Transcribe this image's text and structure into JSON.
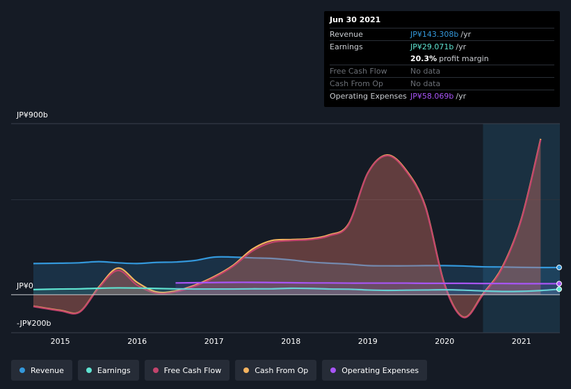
{
  "tooltip": {
    "date": "Jun 30 2021",
    "rows": [
      {
        "label": "Revenue",
        "value": "JP¥143.308b",
        "unit": "/yr",
        "color": "#3498db"
      },
      {
        "label": "Earnings",
        "value": "JP¥29.071b",
        "unit": "/yr",
        "color": "#5fe3d1"
      },
      {
        "label": "",
        "value": "20.3%",
        "unit": "profit margin",
        "color": "#ffffff"
      },
      {
        "label": "Free Cash Flow",
        "value": "No data",
        "unit": "",
        "color": "#6b6f76"
      },
      {
        "label": "Cash From Op",
        "value": "No data",
        "unit": "",
        "color": "#6b6f76"
      },
      {
        "label": "Operating Expenses",
        "value": "JP¥58.069b",
        "unit": "/yr",
        "color": "#a855f7"
      }
    ]
  },
  "chart_data": {
    "type": "area",
    "currency_prefix": "JP¥",
    "y_tick_labels": [
      "JP¥900b",
      "JP¥0",
      "-JP¥200b"
    ],
    "ylim": [
      -200,
      900
    ],
    "x_tick_labels": [
      "2015",
      "2016",
      "2017",
      "2018",
      "2019",
      "2020",
      "2021"
    ],
    "xlim": [
      2014.65,
      2021.5
    ],
    "highlight_start": 2020.5,
    "series": [
      {
        "name": "Revenue",
        "color": "#3498db",
        "x": [
          2014.65,
          2015.0,
          2015.25,
          2015.5,
          2015.75,
          2016.0,
          2016.25,
          2016.5,
          2016.75,
          2017.0,
          2017.25,
          2017.5,
          2017.75,
          2018.0,
          2018.25,
          2018.5,
          2018.75,
          2019.0,
          2019.25,
          2019.5,
          2019.75,
          2020.0,
          2020.25,
          2020.5,
          2020.75,
          2021.0,
          2021.25,
          2021.5
        ],
        "values": [
          164,
          166,
          168,
          174,
          168,
          164,
          170,
          172,
          180,
          198,
          198,
          194,
          191,
          183,
          172,
          166,
          161,
          153,
          152,
          152,
          153,
          153,
          151,
          147,
          146,
          144,
          143,
          143.308
        ]
      },
      {
        "name": "Earnings",
        "color": "#5fe3d1",
        "x": [
          2014.65,
          2015.0,
          2015.25,
          2015.5,
          2015.75,
          2016.0,
          2016.25,
          2016.5,
          2016.75,
          2017.0,
          2017.25,
          2017.5,
          2017.75,
          2018.0,
          2018.25,
          2018.5,
          2018.75,
          2019.0,
          2019.25,
          2019.5,
          2019.75,
          2020.0,
          2020.25,
          2020.5,
          2020.75,
          2021.0,
          2021.25,
          2021.5
        ],
        "values": [
          27,
          30,
          31,
          34,
          36,
          35,
          33,
          31,
          30,
          30,
          30,
          31,
          31,
          34,
          33,
          30,
          29,
          25,
          23,
          24,
          25,
          26,
          24,
          20,
          17,
          18,
          22,
          29.071
        ]
      },
      {
        "name": "Free Cash Flow",
        "color": "#c2446c",
        "x": [
          2014.65,
          2015.0,
          2015.25,
          2015.5,
          2015.75,
          2016.0,
          2016.25,
          2016.5,
          2016.75,
          2017.0,
          2017.25,
          2017.5,
          2017.75,
          2018.0,
          2018.25,
          2018.5,
          2018.75,
          2019.0,
          2019.25,
          2019.5,
          2019.75,
          2020.0,
          2020.25,
          2020.5,
          2020.75,
          2021.0,
          2021.25
        ],
        "values": [
          -62,
          -85,
          -92,
          35,
          128,
          50,
          8,
          15,
          45,
          90,
          150,
          230,
          275,
          285,
          290,
          310,
          368,
          638,
          732,
          650,
          460,
          50,
          -120,
          0,
          140,
          395,
          815
        ]
      },
      {
        "name": "Cash From Op",
        "color": "#f5b35f",
        "x": [
          2014.65,
          2015.0,
          2015.25,
          2015.5,
          2015.75,
          2016.0,
          2016.25,
          2016.5,
          2016.75,
          2017.0,
          2017.25,
          2017.5,
          2017.75,
          2018.0,
          2018.25,
          2018.5,
          2018.75,
          2019.0,
          2019.25,
          2019.5,
          2019.75,
          2020.0,
          2020.25,
          2020.5,
          2020.75,
          2021.0,
          2021.25
        ],
        "values": [
          -60,
          -82,
          -90,
          40,
          140,
          65,
          15,
          20,
          50,
          95,
          155,
          240,
          285,
          290,
          295,
          315,
          372,
          640,
          735,
          655,
          465,
          55,
          -118,
          5,
          145,
          400,
          820
        ]
      },
      {
        "name": "Operating Expenses",
        "color": "#a855f7",
        "x": [
          2016.5,
          2016.75,
          2017.0,
          2017.25,
          2017.5,
          2017.75,
          2018.0,
          2018.25,
          2018.5,
          2018.75,
          2019.0,
          2019.25,
          2019.5,
          2019.75,
          2020.0,
          2020.25,
          2020.5,
          2020.75,
          2021.0,
          2021.25,
          2021.5
        ],
        "values": [
          62,
          63,
          64,
          65,
          65,
          64,
          63,
          62,
          62,
          61,
          61,
          61,
          61,
          60,
          60,
          60,
          59,
          59,
          58,
          58,
          58.069
        ]
      }
    ]
  },
  "legend": [
    {
      "label": "Revenue",
      "color": "#3498db"
    },
    {
      "label": "Earnings",
      "color": "#5fe3d1"
    },
    {
      "label": "Free Cash Flow",
      "color": "#c2446c"
    },
    {
      "label": "Cash From Op",
      "color": "#f5b35f"
    },
    {
      "label": "Operating Expenses",
      "color": "#a855f7"
    }
  ]
}
